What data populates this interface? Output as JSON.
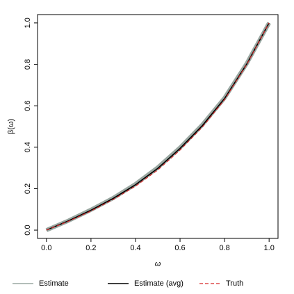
{
  "chart_data": {
    "type": "line",
    "xlabel": "ω",
    "ylabel": "β(ω)",
    "x": [
      0,
      0.1,
      0.2,
      0.3,
      0.4,
      0.5,
      0.6,
      0.7,
      0.8,
      0.9,
      1.0
    ],
    "series": [
      {
        "name": "Estimate",
        "color": "#9aa8a2",
        "style": "solid",
        "width": 6,
        "values": [
          0,
          0.046,
          0.098,
          0.155,
          0.222,
          0.302,
          0.398,
          0.508,
          0.638,
          0.805,
          1.0
        ]
      },
      {
        "name": "Estimate (avg)",
        "color": "#000000",
        "style": "solid",
        "width": 1.6,
        "values": [
          0,
          0.045,
          0.096,
          0.153,
          0.219,
          0.298,
          0.394,
          0.504,
          0.635,
          0.802,
          1.0
        ]
      },
      {
        "name": "Truth",
        "color": "#d62728",
        "style": "dashed",
        "width": 1.2,
        "values": [
          0,
          0.043,
          0.092,
          0.148,
          0.212,
          0.29,
          0.386,
          0.497,
          0.63,
          0.8,
          1.0
        ]
      }
    ],
    "xlim": [
      -0.04,
      1.04
    ],
    "ylim": [
      -0.04,
      1.04
    ],
    "xticks": [
      {
        "value": 0,
        "label": "0.0"
      },
      0.2,
      0.4,
      0.6,
      0.8,
      {
        "value": 1,
        "label": "1.0"
      }
    ],
    "yticks": [
      {
        "value": 0,
        "label": "0.0"
      },
      0.2,
      0.4,
      0.6,
      0.8,
      {
        "value": 1,
        "label": "1.0"
      }
    ],
    "legend": "bottom"
  }
}
